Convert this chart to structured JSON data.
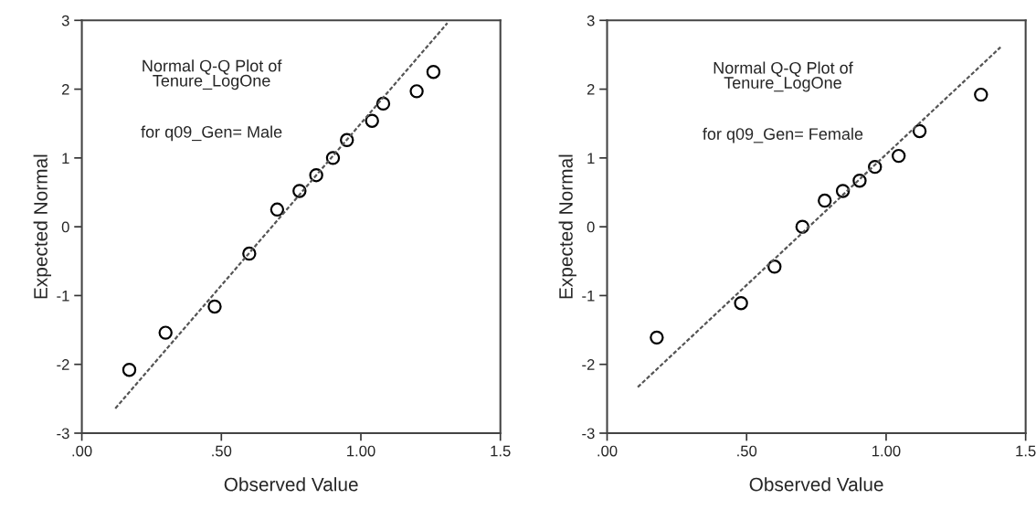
{
  "chart_data": [
    {
      "type": "scatter",
      "xlabel": "Observed Value",
      "ylabel": "Expected Normal",
      "annotations": [
        "Normal Q-Q Plot of\nTenure_LogOne",
        "for q09_Gen= Male"
      ],
      "xlim": [
        0,
        1.5
      ],
      "xticks": [
        {
          "value": 0,
          "label": ".00"
        },
        {
          "value": 0.5,
          "label": ".50"
        },
        {
          "value": 1,
          "label": "1.00"
        },
        {
          "value": 1.5,
          "label": "1.5"
        }
      ],
      "ylim": [
        -3,
        3
      ],
      "yticks": [
        -3,
        -2,
        -1,
        0,
        1,
        2,
        3
      ],
      "grid": false,
      "legend": false,
      "series": [
        {
          "marker": "circle",
          "color": "#000000",
          "x": [
            0.17,
            0.3,
            0.476,
            0.6,
            0.7,
            0.78,
            0.84,
            0.9,
            0.95,
            1.04,
            1.08,
            1.2,
            1.26
          ],
          "values": [
            -2.08,
            -1.54,
            -1.16,
            -0.39,
            0.25,
            0.52,
            0.75,
            1.0,
            1.26,
            1.54,
            1.79,
            1.97,
            2.25
          ]
        },
        {
          "type": "line",
          "color": "#555555",
          "line_style": "dashed",
          "x": [
            0.12,
            1.31
          ],
          "values": [
            -2.64,
            2.96
          ]
        }
      ]
    },
    {
      "type": "scatter",
      "xlabel": "Observed Value",
      "ylabel": "Expected Normal",
      "annotations": [
        "Normal Q-Q Plot of\nTenure_LogOne",
        "for q09_Gen= Female"
      ],
      "xlim": [
        0,
        1.5
      ],
      "xticks": [
        {
          "value": 0,
          "label": ".00"
        },
        {
          "value": 0.5,
          "label": ".50"
        },
        {
          "value": 1,
          "label": "1.00"
        },
        {
          "value": 1.5,
          "label": "1.5"
        }
      ],
      "ylim": [
        -3,
        3
      ],
      "yticks": [
        -3,
        -2,
        -1,
        0,
        1,
        2,
        3
      ],
      "grid": false,
      "legend": false,
      "series": [
        {
          "marker": "circle",
          "color": "#000000",
          "x": [
            0.178,
            0.48,
            0.6,
            0.7,
            0.78,
            0.845,
            0.905,
            0.96,
            1.045,
            1.12,
            1.34
          ],
          "values": [
            -1.61,
            -1.11,
            -0.58,
            0.0,
            0.38,
            0.52,
            0.67,
            0.87,
            1.03,
            1.39,
            1.92
          ]
        },
        {
          "type": "line",
          "color": "#555555",
          "line_style": "dashed",
          "x": [
            0.11,
            1.41
          ],
          "values": [
            -2.33,
            2.61
          ]
        }
      ]
    }
  ]
}
